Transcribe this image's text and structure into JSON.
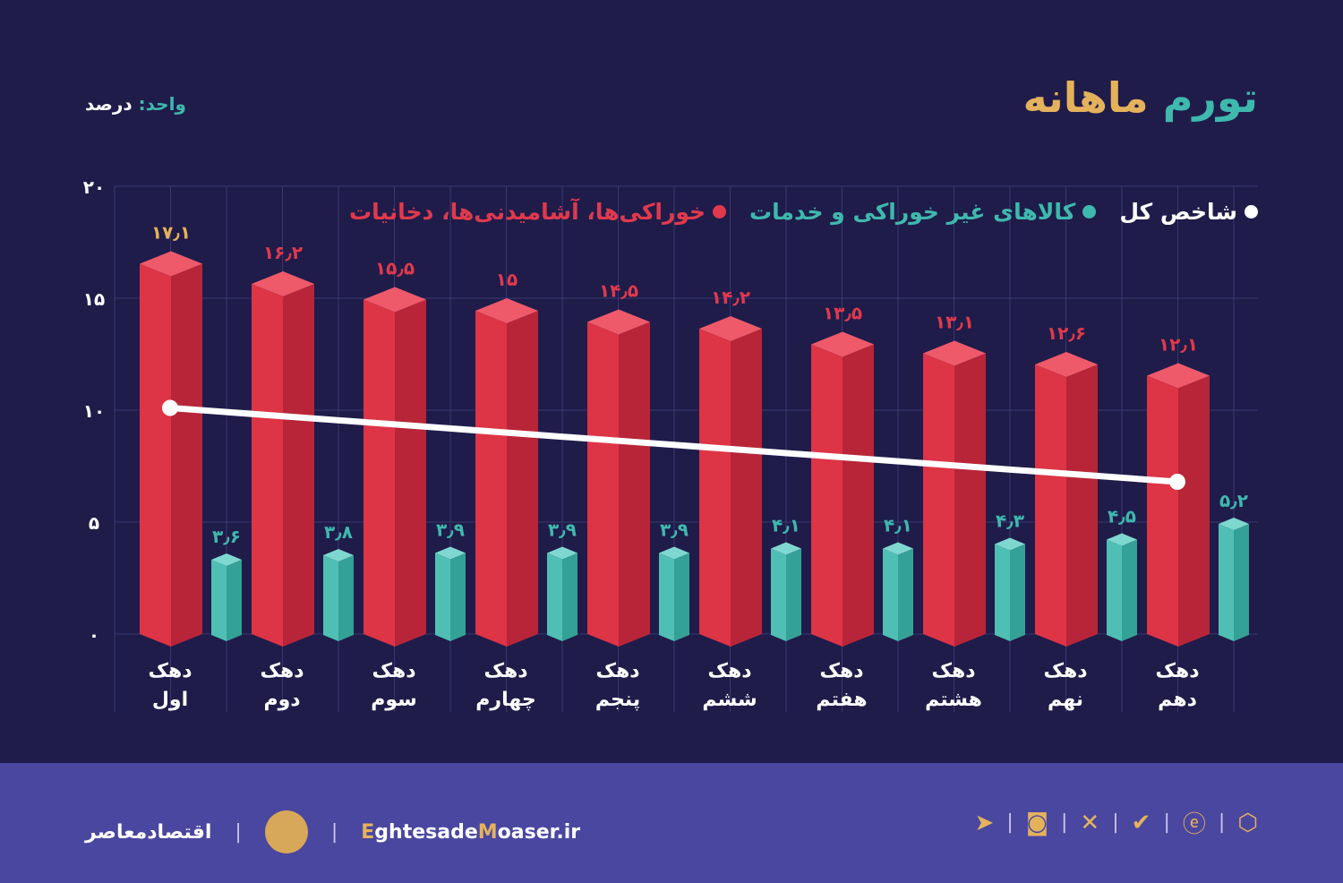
{
  "header": {
    "title_part1": "تورم",
    "title_part2": "ماهانه",
    "unit_label": "واحد:",
    "unit_value": "درصد"
  },
  "legend": [
    {
      "label": "شاخص کل",
      "color": "#ffffff"
    },
    {
      "label": "کالاهای غیر خوراکی و خدمات",
      "color": "#3fb8ad"
    },
    {
      "label": "خوراکی‌ها، آشامیدنی‌ها، دخانیات",
      "color": "#e0394d"
    }
  ],
  "chart_data": {
    "type": "bar",
    "ylim": [
      0,
      20
    ],
    "yticks": [
      0,
      5,
      10,
      15,
      20
    ],
    "ytick_labels": [
      "۰",
      "۵",
      "۱۰",
      "۱۵",
      "۲۰"
    ],
    "grid": true,
    "legend_position": "top-right",
    "categories": [
      [
        "دهک",
        "اول"
      ],
      [
        "دهک",
        "دوم"
      ],
      [
        "دهک",
        "سوم"
      ],
      [
        "دهک",
        "چهارم"
      ],
      [
        "دهک",
        "پنجم"
      ],
      [
        "دهک",
        "ششم"
      ],
      [
        "دهک",
        "هفتم"
      ],
      [
        "دهک",
        "هشتم"
      ],
      [
        "دهک",
        "نهم"
      ],
      [
        "دهک",
        "دهم"
      ]
    ],
    "series": [
      {
        "name": "خوراکی‌ها، آشامیدنی‌ها، دخانیات",
        "type": "bar",
        "color": "#e0394d",
        "values": [
          17.1,
          16.2,
          15.5,
          15,
          14.5,
          14.2,
          13.5,
          13.1,
          12.6,
          12.1
        ],
        "labels": [
          "۱۷٫۱",
          "۱۶٫۲",
          "۱۵٫۵",
          "۱۵",
          "۱۴٫۵",
          "۱۴٫۲",
          "۱۳٫۵",
          "۱۳٫۱",
          "۱۲٫۶",
          "۱۲٫۱"
        ]
      },
      {
        "name": "کالاهای غیر خوراکی و خدمات",
        "type": "bar",
        "color": "#3fb8ad",
        "values": [
          3.6,
          3.8,
          3.9,
          3.9,
          3.9,
          4.1,
          4.1,
          4.3,
          4.5,
          5.2
        ],
        "labels": [
          "۳٫۶",
          "۳٫۸",
          "۳٫۹",
          "۳٫۹",
          "۳٫۹",
          "۴٫۱",
          "۴٫۱",
          "۴٫۳",
          "۴٫۵",
          "۵٫۲"
        ]
      },
      {
        "name": "شاخص کل",
        "type": "line",
        "color": "#ffffff",
        "points": [
          {
            "category_index": 0,
            "value": 10.1
          },
          {
            "category_index": 9,
            "value": 6.8
          }
        ]
      }
    ],
    "first_label_color": "#e5b25c"
  },
  "footer": {
    "brand_name": "اقتصادمعاصر",
    "site_part1": "E",
    "site_part2": "ghtesade",
    "site_part3": "M",
    "site_part4": "oaser.ir",
    "social_icons": [
      "telegram-icon",
      "instagram-icon",
      "x-icon",
      "bale-icon",
      "eitaa-icon",
      "rubika-icon"
    ]
  }
}
